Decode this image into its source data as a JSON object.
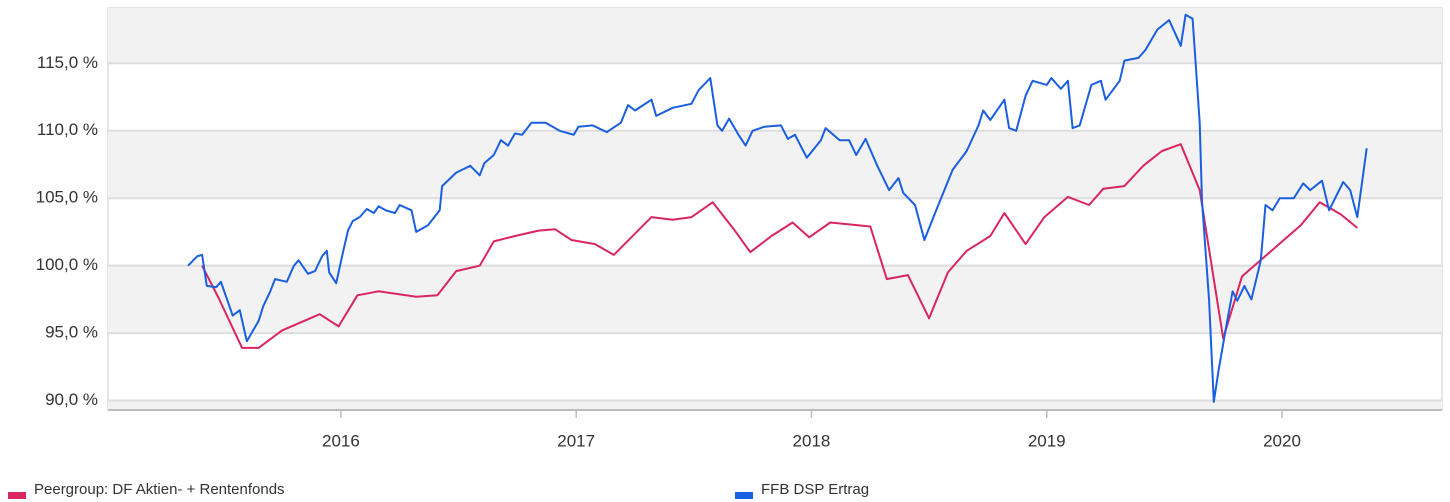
{
  "chart_data": {
    "type": "line",
    "xlim": [
      2015.01,
      2020.68
    ],
    "xticks": [
      2016,
      2017,
      2018,
      2019,
      2020
    ],
    "ylim": [
      89.3,
      119.1
    ],
    "yticks": [
      {
        "value": 90,
        "label": "90,0 %"
      },
      {
        "value": 95,
        "label": "95,0 %"
      },
      {
        "value": 100,
        "label": "100,0 %"
      },
      {
        "value": 105,
        "label": "105,0 %"
      },
      {
        "value": 110,
        "label": "110,0 %"
      },
      {
        "value": 115,
        "label": "115,0 %"
      }
    ],
    "grid": true,
    "series": [
      {
        "name": "Peergroup: DF Aktien- + Rentenfonds",
        "color": "#d9265e",
        "x": [
          2015.41,
          2015.48,
          2015.58,
          2015.65,
          2015.75,
          2015.91,
          2015.99,
          2016.07,
          2016.16,
          2016.32,
          2016.41,
          2016.49,
          2016.59,
          2016.65,
          2016.74,
          2016.84,
          2016.91,
          2016.98,
          2017.08,
          2017.16,
          2017.32,
          2017.41,
          2017.49,
          2017.58,
          2017.67,
          2017.74,
          2017.83,
          2017.92,
          2017.99,
          2018.08,
          2018.25,
          2018.32,
          2018.41,
          2018.5,
          2018.58,
          2018.66,
          2018.76,
          2018.82,
          2018.91,
          2018.99,
          2019.09,
          2019.18,
          2019.24,
          2019.33,
          2019.41,
          2019.49,
          2019.57,
          2019.65,
          2019.75,
          2019.83,
          2020.08,
          2020.16,
          2020.25,
          2020.32
        ],
        "values": [
          100.0,
          97.6,
          93.9,
          93.9,
          95.2,
          96.4,
          95.5,
          97.8,
          98.1,
          97.7,
          97.8,
          99.6,
          100.0,
          101.8,
          102.2,
          102.6,
          102.7,
          101.9,
          101.6,
          100.8,
          103.6,
          103.4,
          103.6,
          104.7,
          102.7,
          101.0,
          102.2,
          103.2,
          102.1,
          103.2,
          102.9,
          99.0,
          99.3,
          96.1,
          99.5,
          101.1,
          102.2,
          103.9,
          101.6,
          103.6,
          105.1,
          104.5,
          105.7,
          105.9,
          107.4,
          108.5,
          109.0,
          105.6,
          94.6,
          99.2,
          103.0,
          104.7,
          103.8,
          102.8
        ]
      },
      {
        "name": "FFB DSP Ertrag",
        "color": "#1a5fe0",
        "x": [
          2015.35,
          2015.39,
          2015.41,
          2015.43,
          2015.47,
          2015.49,
          2015.54,
          2015.57,
          2015.6,
          2015.65,
          2015.67,
          2015.7,
          2015.72,
          2015.77,
          2015.8,
          2015.82,
          2015.86,
          2015.89,
          2015.92,
          2015.94,
          2015.95,
          2015.98,
          2016.01,
          2016.03,
          2016.05,
          2016.08,
          2016.11,
          2016.14,
          2016.16,
          2016.19,
          2016.23,
          2016.25,
          2016.3,
          2016.32,
          2016.37,
          2016.42,
          2016.43,
          2016.49,
          2016.55,
          2016.59,
          2016.61,
          2016.65,
          2016.68,
          2016.71,
          2016.74,
          2016.77,
          2016.81,
          2016.87,
          2016.93,
          2016.99,
          2017.01,
          2017.07,
          2017.13,
          2017.19,
          2017.22,
          2017.25,
          2017.32,
          2017.34,
          2017.41,
          2017.49,
          2017.52,
          2017.57,
          2017.6,
          2017.62,
          2017.65,
          2017.69,
          2017.72,
          2017.75,
          2017.8,
          2017.87,
          2017.9,
          2017.93,
          2017.98,
          2018.04,
          2018.06,
          2018.12,
          2018.16,
          2018.19,
          2018.23,
          2018.28,
          2018.33,
          2018.37,
          2018.39,
          2018.44,
          2018.48,
          2018.53,
          2018.6,
          2018.66,
          2018.71,
          2018.73,
          2018.76,
          2018.82,
          2018.84,
          2018.87,
          2018.91,
          2018.94,
          2019.0,
          2019.02,
          2019.06,
          2019.09,
          2019.11,
          2019.14,
          2019.19,
          2019.23,
          2019.25,
          2019.31,
          2019.33,
          2019.39,
          2019.42,
          2019.47,
          2019.52,
          2019.57,
          2019.59,
          2019.62,
          2019.65,
          2019.66,
          2019.69,
          2019.71,
          2019.73,
          2019.76,
          2019.79,
          2019.81,
          2019.84,
          2019.87,
          2019.91,
          2019.93,
          2019.96,
          2019.99,
          2020.05,
          2020.09,
          2020.12,
          2020.17,
          2020.2,
          2020.26,
          2020.29,
          2020.32,
          2020.36
        ],
        "values": [
          100.0,
          100.7,
          100.8,
          98.5,
          98.4,
          98.8,
          96.3,
          96.7,
          94.4,
          95.9,
          97.0,
          98.1,
          99.0,
          98.8,
          100.0,
          100.4,
          99.4,
          99.6,
          100.7,
          101.1,
          99.5,
          98.7,
          101.1,
          102.6,
          103.3,
          103.6,
          104.2,
          103.9,
          104.4,
          104.1,
          103.9,
          104.5,
          104.1,
          102.5,
          103.0,
          104.1,
          105.9,
          106.9,
          107.4,
          106.7,
          107.6,
          108.2,
          109.3,
          108.9,
          109.8,
          109.7,
          110.6,
          110.6,
          110.0,
          109.7,
          110.3,
          110.4,
          109.9,
          110.6,
          111.9,
          111.5,
          112.3,
          111.1,
          111.7,
          112.0,
          113.0,
          113.9,
          110.4,
          110.0,
          110.9,
          109.7,
          108.9,
          110.0,
          110.3,
          110.4,
          109.4,
          109.7,
          108.0,
          109.3,
          110.2,
          109.3,
          109.3,
          108.2,
          109.4,
          107.4,
          105.6,
          106.5,
          105.4,
          104.5,
          101.9,
          104.1,
          107.1,
          108.5,
          110.4,
          111.5,
          110.8,
          112.3,
          110.2,
          110.0,
          112.6,
          113.7,
          113.4,
          113.9,
          113.1,
          113.7,
          110.2,
          110.4,
          113.4,
          113.7,
          112.3,
          113.7,
          115.2,
          115.4,
          116.0,
          117.5,
          118.2,
          116.3,
          118.6,
          118.3,
          110.6,
          104.8,
          97.4,
          89.9,
          92.2,
          95.2,
          98.1,
          97.4,
          98.5,
          97.5,
          100.4,
          104.5,
          104.1,
          105.0,
          105.0,
          106.1,
          105.6,
          106.3,
          104.1,
          106.2,
          105.6,
          103.6,
          108.7
        ]
      }
    ]
  }
}
